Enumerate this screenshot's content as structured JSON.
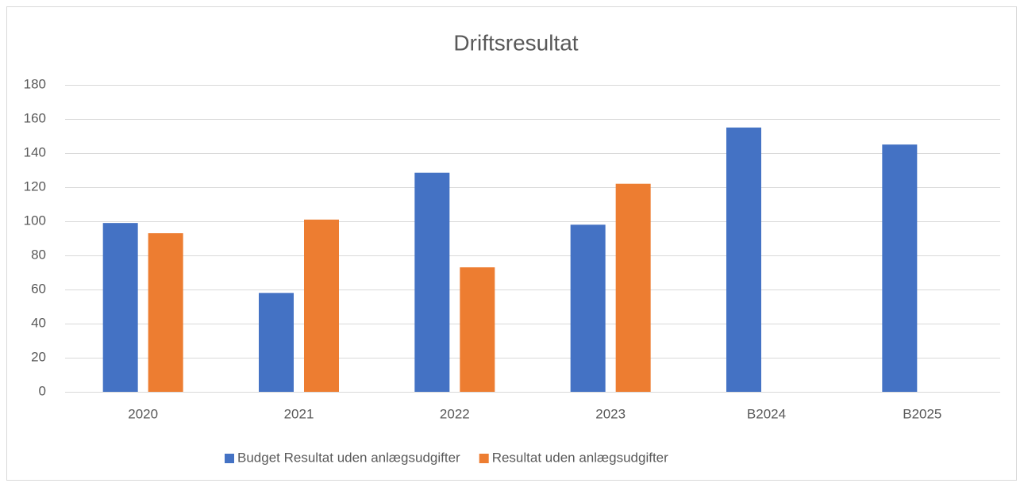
{
  "chart_data": {
    "type": "bar",
    "title": "Driftsresultat",
    "categories": [
      "2020",
      "2021",
      "2022",
      "2023",
      "B2024",
      "B2025"
    ],
    "series": [
      {
        "name": "Budget Resultat uden anlægsudgifter",
        "color": "#4472c4",
        "values": [
          99,
          58,
          128.5,
          98,
          155,
          145
        ]
      },
      {
        "name": "Resultat uden anlægsudgifter",
        "color": "#ed7d31",
        "values": [
          93,
          101,
          73,
          122,
          null,
          null
        ]
      }
    ],
    "ylim": [
      0,
      180
    ],
    "yticks": [
      0,
      20,
      40,
      60,
      80,
      100,
      120,
      140,
      160,
      180
    ],
    "grid": true,
    "legend": "bottom"
  }
}
